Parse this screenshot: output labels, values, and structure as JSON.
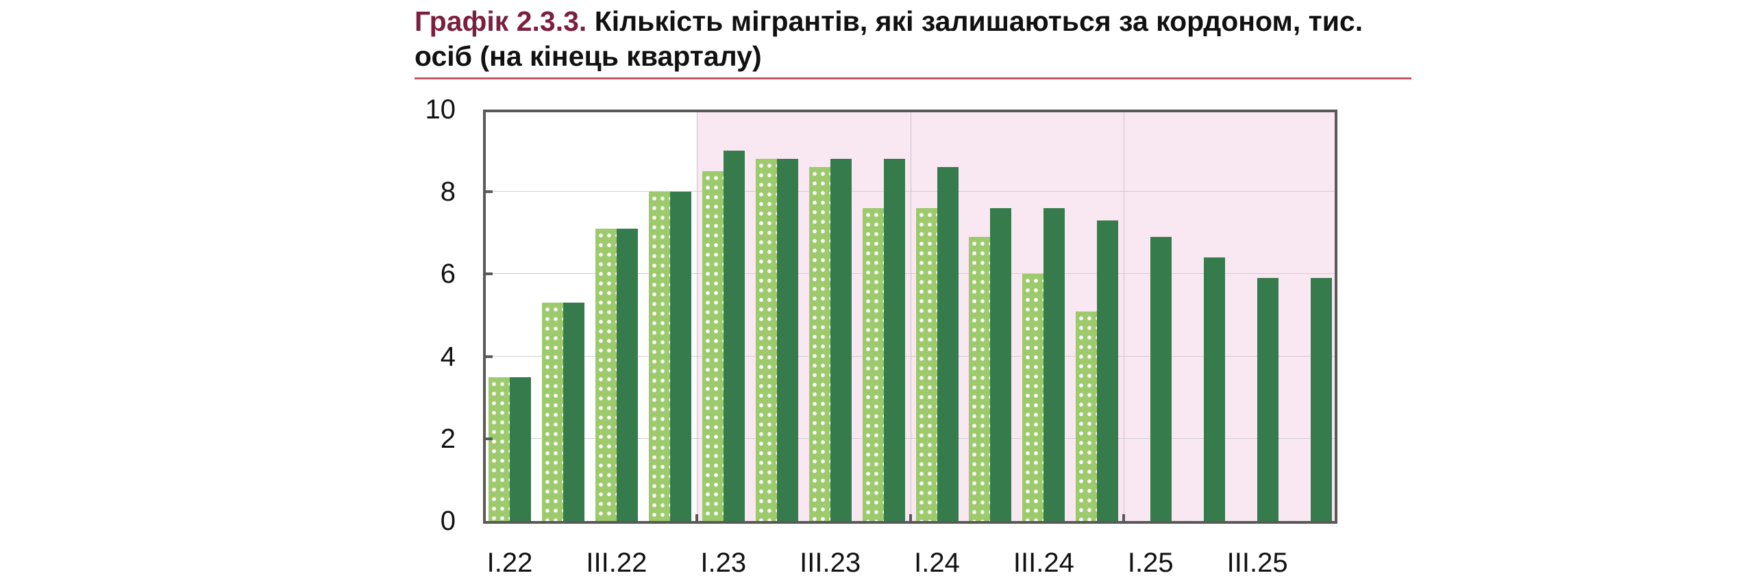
{
  "title": {
    "number": "Графік 2.3.3.",
    "text": "Кількість мігрантів, які залишаються за кордоном, тис. осіб (на кінець кварталу)"
  },
  "colors": {
    "title_number": "#7a1f3d",
    "rule": "#c9566b",
    "series_light": "#9cca6d",
    "series_dark": "#367b4b",
    "forecast_shade": "#f9e8f1",
    "axis": "#595959"
  },
  "chart_data": {
    "type": "bar",
    "title": "Графік 2.3.3. Кількість мігрантів, які залишаються за кордоном, тис. осіб (на кінець кварталу)",
    "xlabel": "",
    "ylabel": "",
    "ylim": [
      0,
      10
    ],
    "yticks": [
      0,
      2,
      4,
      6,
      8,
      10
    ],
    "grid": true,
    "legend": "none visible",
    "categories": [
      "I.22",
      "II.22",
      "III.22",
      "IV.22",
      "I.23",
      "II.23",
      "III.23",
      "IV.23",
      "I.24",
      "II.24",
      "III.24",
      "IV.24",
      "I.25",
      "II.25",
      "III.25",
      "IV.25"
    ],
    "xtick_labels": [
      "I.22",
      "III.22",
      "I.23",
      "III.23",
      "I.24",
      "III.24",
      "I.25",
      "III.25"
    ],
    "shaded_region": {
      "from": "I.23",
      "to": "IV.25"
    },
    "series": [
      {
        "name": "Series 1 (light green, dotted)",
        "values": [
          3.5,
          5.3,
          7.1,
          8.0,
          8.5,
          8.8,
          8.6,
          7.6,
          7.6,
          6.9,
          6.0,
          5.1,
          null,
          null,
          null,
          null
        ]
      },
      {
        "name": "Series 2 (dark green)",
        "values": [
          3.5,
          5.3,
          7.1,
          8.0,
          9.0,
          8.8,
          8.8,
          8.8,
          8.6,
          7.6,
          7.6,
          7.3,
          6.9,
          6.4,
          5.9,
          5.9
        ]
      }
    ]
  }
}
